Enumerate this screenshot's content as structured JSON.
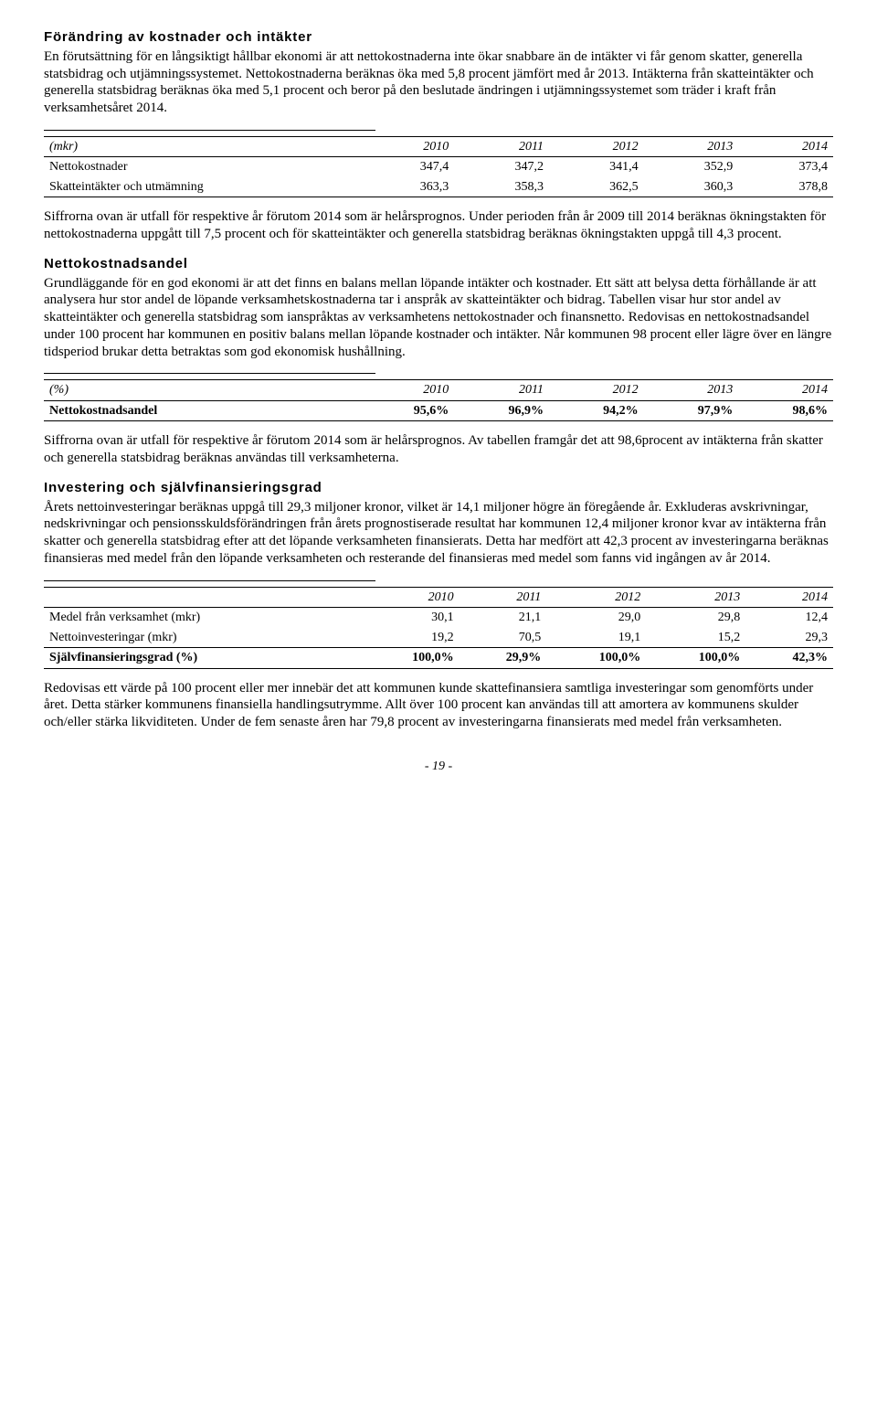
{
  "section1": {
    "heading": "Förändring av kostnader och intäkter",
    "para": "En förutsättning för en långsiktigt hållbar ekonomi är att nettokostnaderna inte ökar snabbare än de intäkter vi får genom skatter, generella statsbidrag och utjämningssystemet. Nettokostnaderna beräknas öka med 5,8 procent jämfört med år 2013. Intäkterna från skatteintäkter och generella statsbidrag beräknas öka med 5,1 procent och beror på den beslutade ändringen i utjämningssystemet som träder i kraft från verksamhetsåret 2014.",
    "table": {
      "head_label": "(mkr)",
      "years": [
        "2010",
        "2011",
        "2012",
        "2013",
        "2014"
      ],
      "rows": [
        {
          "label": "Nettokostnader",
          "vals": [
            "347,4",
            "347,2",
            "341,4",
            "352,9",
            "373,4"
          ]
        },
        {
          "label": "Skatteintäkter och utmämning",
          "vals": [
            "363,3",
            "358,3",
            "362,5",
            "360,3",
            "378,8"
          ]
        }
      ]
    },
    "para2": "Siffrorna ovan är utfall för respektive år förutom 2014 som är helårsprognos. Under perioden från år 2009 till 2014 beräknas ökningstakten för nettokostnaderna uppgått till 7,5 procent och för skatteintäkter och generella statsbidrag beräknas ökningstakten uppgå till 4,3 procent."
  },
  "section2": {
    "heading": "Nettokostnadsandel",
    "para": "Grundläggande för en god ekonomi är att det finns en balans mellan löpande intäkter och kostnader. Ett sätt att belysa detta förhållande är att analysera hur stor andel de löpande verksamhetskostnaderna tar i anspråk av skatteintäkter och bidrag. Tabellen visar hur stor andel av skatteintäkter och generella statsbidrag som ianspråktas av verksamhetens nettokostnader och finansnetto. Redovisas en nettokostnadsandel under 100 procent har kommunen en positiv balans mellan löpande kostnader och intäkter. Når kommunen 98 procent eller lägre över en längre tidsperiod brukar detta betraktas som god ekonomisk hushållning.",
    "table": {
      "head_label": "(%)",
      "years": [
        "2010",
        "2011",
        "2012",
        "2013",
        "2014"
      ],
      "row": {
        "label": "Nettokostnadsandel",
        "vals": [
          "95,6%",
          "96,9%",
          "94,2%",
          "97,9%",
          "98,6%"
        ]
      }
    },
    "para2": "Siffrorna ovan är utfall för respektive år förutom 2014 som är helårsprognos. Av tabellen framgår det att 98,6procent av intäkterna från skatter och generella statsbidrag beräknas användas till verksamheterna."
  },
  "section3": {
    "heading": "Investering och självfinansieringsgrad",
    "para": "Årets nettoinvesteringar beräknas uppgå till 29,3 miljoner kronor, vilket är 14,1 miljoner högre än föregående år. Exkluderas avskrivningar, nedskrivningar och pensionsskuldsförändringen från årets prognostiserade resultat har kommunen 12,4 miljoner kronor kvar av intäkterna från skatter och generella statsbidrag efter att det löpande verksamheten finansierats. Detta har medfört att 42,3 procent av investeringarna beräknas finansieras med medel från den löpande verksamheten och resterande del finansieras med medel som fanns vid ingången av år 2014.",
    "table": {
      "years": [
        "2010",
        "2011",
        "2012",
        "2013",
        "2014"
      ],
      "rows": [
        {
          "label": "Medel från verksamhet (mkr)",
          "vals": [
            "30,1",
            "21,1",
            "29,0",
            "29,8",
            "12,4"
          ]
        },
        {
          "label": "Nettoinvesteringar (mkr)",
          "vals": [
            "19,2",
            "70,5",
            "19,1",
            "15,2",
            "29,3"
          ]
        }
      ],
      "sum": {
        "label": "Självfinansieringsgrad (%)",
        "vals": [
          "100,0%",
          "29,9%",
          "100,0%",
          "100,0%",
          "42,3%"
        ]
      }
    },
    "para2": "Redovisas ett värde på 100 procent eller mer innebär det att kommunen kunde skattefinansiera samtliga investeringar som genomförts under året. Detta stärker kommunens finansiella handlingsutrymme. Allt över 100 procent kan användas till att amortera av kommunens skulder och/eller stärka likviditeten. Under de fem senaste åren har 79,8 procent av investeringarna finansierats med medel från verksamheten."
  },
  "footer": "- 19 -"
}
